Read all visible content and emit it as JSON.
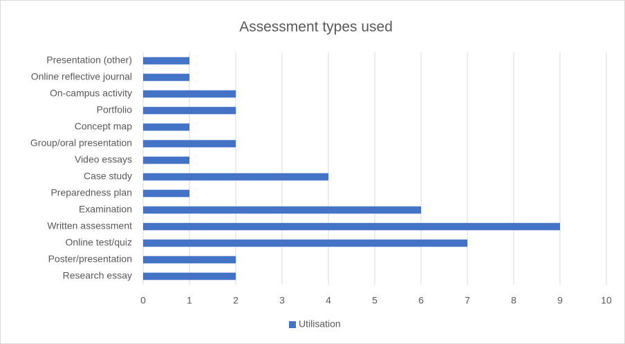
{
  "chart_data": {
    "type": "bar",
    "orientation": "horizontal",
    "title": "Assessment types used",
    "categories": [
      "Presentation (other)",
      "Online reflective journal",
      "On-campus activity",
      "Portfolio",
      "Concept map",
      "Group/oral presentation",
      "Video essays",
      "Case study",
      "Preparedness plan",
      "Examination",
      "Written assessment",
      "Online test/quiz",
      "Poster/presentation",
      "Research essay"
    ],
    "series": [
      {
        "name": "Utilisation",
        "color": "#4472c4",
        "values": [
          1,
          1,
          2,
          2,
          1,
          2,
          1,
          4,
          1,
          6,
          9,
          7,
          2,
          2
        ]
      }
    ],
    "xlim": [
      0,
      10
    ],
    "xticks": [
      0,
      1,
      2,
      3,
      4,
      5,
      6,
      7,
      8,
      9,
      10
    ],
    "grid": true,
    "legend": "bottom"
  }
}
